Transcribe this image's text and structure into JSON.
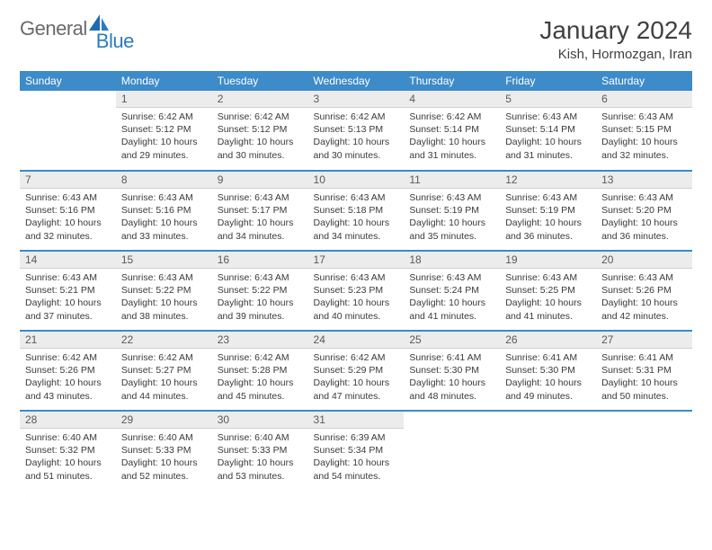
{
  "brand": {
    "part1": "General",
    "part2": "Blue"
  },
  "title": "January 2024",
  "location": "Kish, Hormozgan, Iran",
  "colors": {
    "header_bg": "#3d8bc8",
    "header_text": "#ffffff",
    "daynum_bg": "#ececec",
    "rule": "#3d8bc8",
    "body_bg": "#ffffff",
    "text": "#3a3a3a",
    "logo_gray": "#6a6a6a",
    "logo_blue": "#2a7bbf"
  },
  "weekdays": [
    "Sunday",
    "Monday",
    "Tuesday",
    "Wednesday",
    "Thursday",
    "Friday",
    "Saturday"
  ],
  "start_offset": 1,
  "days": [
    {
      "n": 1,
      "sr": "6:42 AM",
      "ss": "5:12 PM",
      "dl": "10 hours and 29 minutes."
    },
    {
      "n": 2,
      "sr": "6:42 AM",
      "ss": "5:12 PM",
      "dl": "10 hours and 30 minutes."
    },
    {
      "n": 3,
      "sr": "6:42 AM",
      "ss": "5:13 PM",
      "dl": "10 hours and 30 minutes."
    },
    {
      "n": 4,
      "sr": "6:42 AM",
      "ss": "5:14 PM",
      "dl": "10 hours and 31 minutes."
    },
    {
      "n": 5,
      "sr": "6:43 AM",
      "ss": "5:14 PM",
      "dl": "10 hours and 31 minutes."
    },
    {
      "n": 6,
      "sr": "6:43 AM",
      "ss": "5:15 PM",
      "dl": "10 hours and 32 minutes."
    },
    {
      "n": 7,
      "sr": "6:43 AM",
      "ss": "5:16 PM",
      "dl": "10 hours and 32 minutes."
    },
    {
      "n": 8,
      "sr": "6:43 AM",
      "ss": "5:16 PM",
      "dl": "10 hours and 33 minutes."
    },
    {
      "n": 9,
      "sr": "6:43 AM",
      "ss": "5:17 PM",
      "dl": "10 hours and 34 minutes."
    },
    {
      "n": 10,
      "sr": "6:43 AM",
      "ss": "5:18 PM",
      "dl": "10 hours and 34 minutes."
    },
    {
      "n": 11,
      "sr": "6:43 AM",
      "ss": "5:19 PM",
      "dl": "10 hours and 35 minutes."
    },
    {
      "n": 12,
      "sr": "6:43 AM",
      "ss": "5:19 PM",
      "dl": "10 hours and 36 minutes."
    },
    {
      "n": 13,
      "sr": "6:43 AM",
      "ss": "5:20 PM",
      "dl": "10 hours and 36 minutes."
    },
    {
      "n": 14,
      "sr": "6:43 AM",
      "ss": "5:21 PM",
      "dl": "10 hours and 37 minutes."
    },
    {
      "n": 15,
      "sr": "6:43 AM",
      "ss": "5:22 PM",
      "dl": "10 hours and 38 minutes."
    },
    {
      "n": 16,
      "sr": "6:43 AM",
      "ss": "5:22 PM",
      "dl": "10 hours and 39 minutes."
    },
    {
      "n": 17,
      "sr": "6:43 AM",
      "ss": "5:23 PM",
      "dl": "10 hours and 40 minutes."
    },
    {
      "n": 18,
      "sr": "6:43 AM",
      "ss": "5:24 PM",
      "dl": "10 hours and 41 minutes."
    },
    {
      "n": 19,
      "sr": "6:43 AM",
      "ss": "5:25 PM",
      "dl": "10 hours and 41 minutes."
    },
    {
      "n": 20,
      "sr": "6:43 AM",
      "ss": "5:26 PM",
      "dl": "10 hours and 42 minutes."
    },
    {
      "n": 21,
      "sr": "6:42 AM",
      "ss": "5:26 PM",
      "dl": "10 hours and 43 minutes."
    },
    {
      "n": 22,
      "sr": "6:42 AM",
      "ss": "5:27 PM",
      "dl": "10 hours and 44 minutes."
    },
    {
      "n": 23,
      "sr": "6:42 AM",
      "ss": "5:28 PM",
      "dl": "10 hours and 45 minutes."
    },
    {
      "n": 24,
      "sr": "6:42 AM",
      "ss": "5:29 PM",
      "dl": "10 hours and 47 minutes."
    },
    {
      "n": 25,
      "sr": "6:41 AM",
      "ss": "5:30 PM",
      "dl": "10 hours and 48 minutes."
    },
    {
      "n": 26,
      "sr": "6:41 AM",
      "ss": "5:30 PM",
      "dl": "10 hours and 49 minutes."
    },
    {
      "n": 27,
      "sr": "6:41 AM",
      "ss": "5:31 PM",
      "dl": "10 hours and 50 minutes."
    },
    {
      "n": 28,
      "sr": "6:40 AM",
      "ss": "5:32 PM",
      "dl": "10 hours and 51 minutes."
    },
    {
      "n": 29,
      "sr": "6:40 AM",
      "ss": "5:33 PM",
      "dl": "10 hours and 52 minutes."
    },
    {
      "n": 30,
      "sr": "6:40 AM",
      "ss": "5:33 PM",
      "dl": "10 hours and 53 minutes."
    },
    {
      "n": 31,
      "sr": "6:39 AM",
      "ss": "5:34 PM",
      "dl": "10 hours and 54 minutes."
    }
  ],
  "labels": {
    "sunrise": "Sunrise:",
    "sunset": "Sunset:",
    "daylight": "Daylight:"
  }
}
